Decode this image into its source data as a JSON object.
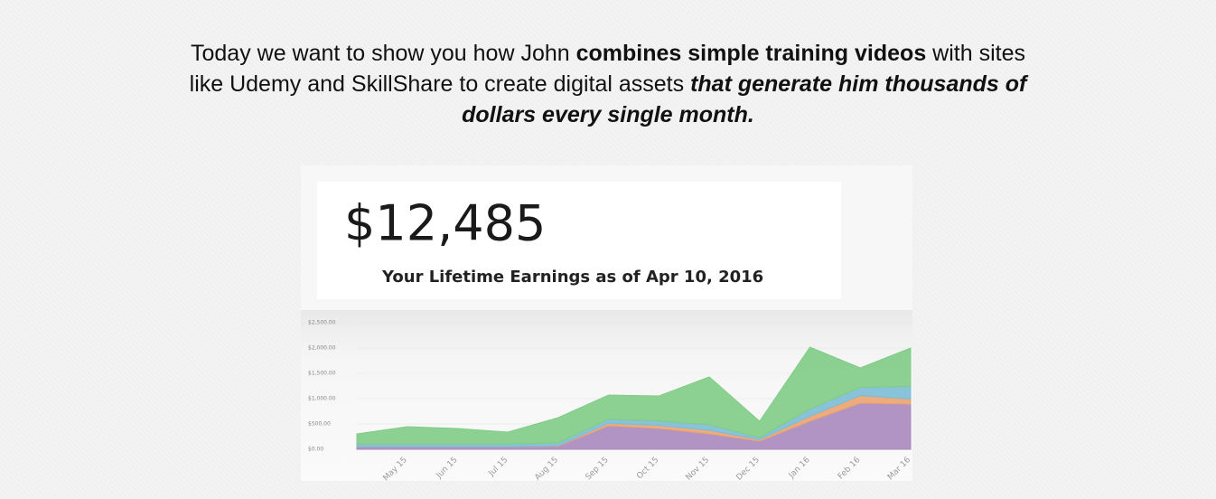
{
  "intro": {
    "lines": [
      [
        "Today we want to show you how John ",
        "combines simple training videos",
        " with sites"
      ],
      [
        "like Udemy and SkillShare to create digital assets ",
        "that generate him thousands of"
      ],
      [
        "dollars every single month."
      ]
    ]
  },
  "chart_data": {
    "type": "area",
    "stacked": true,
    "title": "$12,485",
    "subtitle": "Your Lifetime Earnings as of Apr 10, 2016",
    "categories": [
      null,
      "May 15",
      "Jun 15",
      "Jul 15",
      "Aug 15",
      "Sep 15",
      "Oct 15",
      "Nov 15",
      "Dec 15",
      "Jan 16",
      "Feb 16",
      "Mar 16"
    ],
    "series": [
      {
        "color": "#a988bd",
        "values": [
          50,
          50,
          50,
          50,
          60,
          464,
          411,
          304,
          161,
          554,
          911,
          893
        ]
      },
      {
        "color": "#eaa36f",
        "values": [
          0,
          0,
          0,
          0,
          10,
          50,
          60,
          70,
          30,
          100,
          150,
          100
        ]
      },
      {
        "color": "#7cbcd6",
        "values": [
          50,
          50,
          50,
          50,
          60,
          80,
          90,
          110,
          40,
          140,
          160,
          250
        ]
      },
      {
        "color": "#80cc86",
        "values": [
          204,
          346,
          311,
          239,
          495,
          477,
          493,
          945,
          323,
          1224,
          386,
          757
        ]
      }
    ],
    "ylim": [
      0,
      2500
    ],
    "yticks": [
      {
        "value": 0,
        "label": "$0.00"
      },
      {
        "value": 500,
        "label": "$500.00"
      },
      {
        "value": 1000,
        "label": "$1,000.00"
      },
      {
        "value": 1500,
        "label": "$1,500.00"
      },
      {
        "value": 2000,
        "label": "$2,000.00"
      },
      {
        "value": 2500,
        "label": "$2,500.00"
      }
    ]
  }
}
